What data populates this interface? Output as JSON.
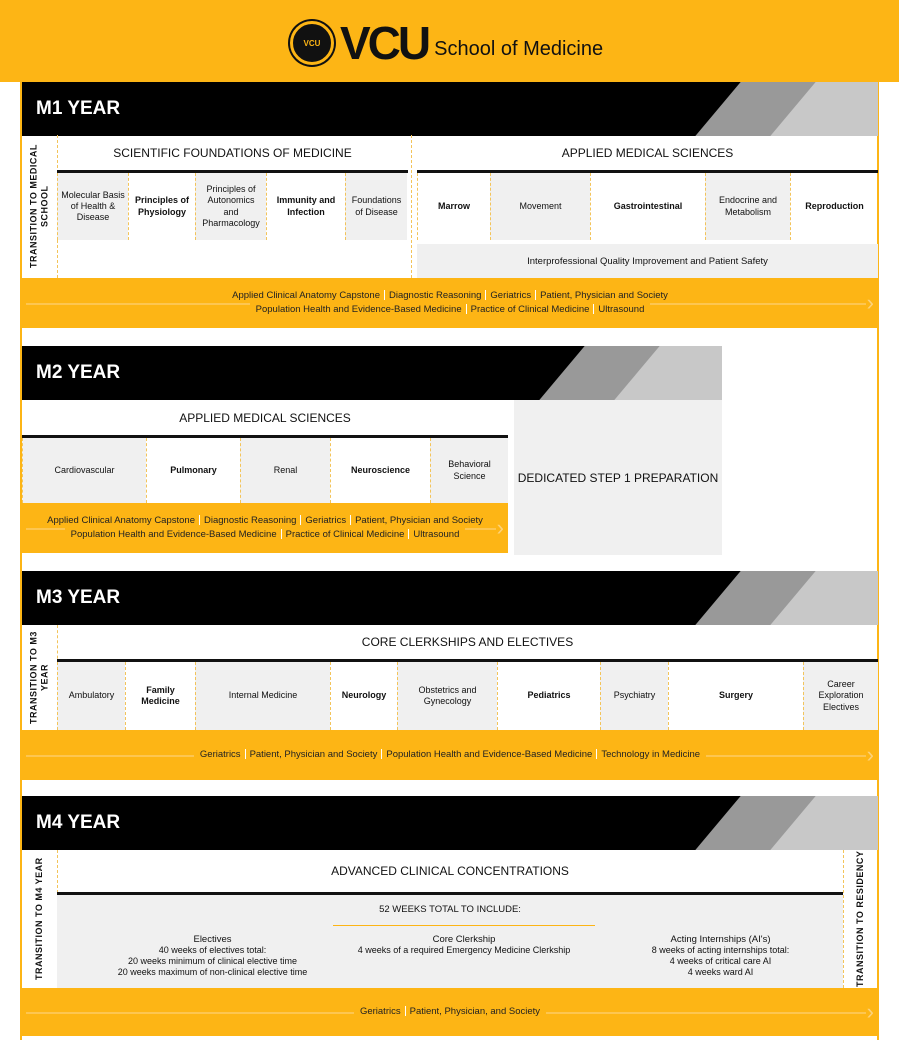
{
  "header": {
    "seal_text": "VCU",
    "brand": "VCU",
    "subtitle": "School of Medicine"
  },
  "colors": {
    "gold": "#FDB515",
    "black": "#000000",
    "shade": "#f0f0f0"
  },
  "m1": {
    "title": "M1 YEAR",
    "transition": "TRANSITION TO MEDICAL SCHOOL",
    "left_heading": "SCIENTIFIC FOUNDATIONS OF MEDICINE",
    "left_courses": [
      "Molecular Basis of Health & Disease",
      "Principles of Physiology",
      "Principles of Autonomics and Pharmacology",
      "Immunity and Infection",
      "Foundations of Disease"
    ],
    "right_heading": "APPLIED MEDICAL SCIENCES",
    "right_courses": [
      "Marrow",
      "Movement",
      "Gastrointestinal",
      "Endocrine and Metabolism",
      "Reproduction"
    ],
    "iqips": "Interprofessional Quality Improvement and Patient Safety",
    "threads_line1": [
      "Applied Clinical Anatomy Capstone",
      "Diagnostic Reasoning",
      "Geriatrics",
      "Patient, Physician and Society"
    ],
    "threads_line2": [
      "Population Health and Evidence-Based Medicine",
      "Practice of Clinical Medicine",
      "Ultrasound"
    ]
  },
  "m2": {
    "title": "M2 YEAR",
    "heading": "APPLIED MEDICAL SCIENCES",
    "courses": [
      "Cardiovascular",
      "Pulmonary",
      "Renal",
      "Neuroscience",
      "Behavioral Science"
    ],
    "step1": "DEDICATED STEP 1 PREPARATION",
    "threads_line1": [
      "Applied Clinical Anatomy Capstone",
      "Diagnostic Reasoning",
      "Geriatrics",
      "Patient, Physician and Society"
    ],
    "threads_line2": [
      "Population Health and Evidence-Based Medicine",
      "Practice of Clinical Medicine",
      "Ultrasound"
    ]
  },
  "m3": {
    "title": "M3 YEAR",
    "transition": "TRANSITION TO M3 YEAR",
    "heading": "CORE CLERKSHIPS AND ELECTIVES",
    "courses": [
      "Ambulatory",
      "Family Medicine",
      "Internal Medicine",
      "Neurology",
      "Obstetrics and Gynecology",
      "Pediatrics",
      "Psychiatry",
      "Surgery",
      "Career Exploration Electives"
    ],
    "threads_line1": [
      "Geriatrics",
      "Patient, Physician and Society",
      "Population Health and Evidence-Based Medicine",
      "Technology in Medicine"
    ]
  },
  "m4": {
    "title": "M4 YEAR",
    "transition_left": "TRANSITION TO M4 YEAR",
    "transition_right": "TRANSITION TO RESIDENCY",
    "heading": "ADVANCED CLINICAL CONCENTRATIONS",
    "total": "52 WEEKS TOTAL TO INCLUDE:",
    "columns": [
      {
        "title": "Electives",
        "lines": [
          "40 weeks of electives total:",
          "20 weeks minimum of clinical elective time",
          "20 weeks maximum of non-clinical elective time"
        ]
      },
      {
        "title": "Core Clerkship",
        "lines": [
          "4 weeks of a required Emergency Medicine Clerkship"
        ]
      },
      {
        "title": "Acting Internships (AI's)",
        "lines": [
          "8 weeks of acting internships total:",
          "4 weeks of critical care AI",
          "4 weeks ward AI"
        ]
      }
    ],
    "threads_line1": [
      "Geriatrics",
      "Patient, Physician, and Society"
    ]
  }
}
